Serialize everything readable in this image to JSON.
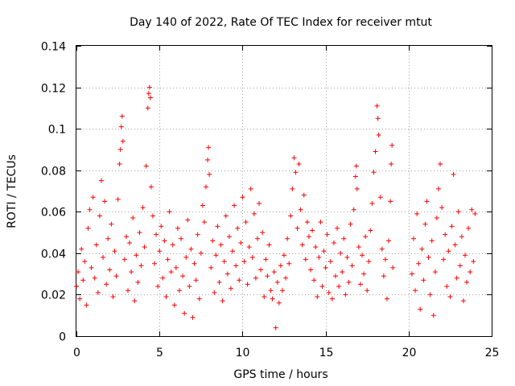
{
  "chart_data": {
    "type": "scatter",
    "title": "Day 140 of 2022, Rate Of TEC Index for receiver mtut",
    "xlabel": "GPS time / hours",
    "ylabel": "ROTI / TECUs",
    "xlim": [
      0,
      25
    ],
    "ylim": [
      0,
      0.14
    ],
    "xticks": [
      "0",
      "5",
      "10",
      "15",
      "20",
      "25"
    ],
    "yticks": [
      "0",
      "0.02",
      "0.04",
      "0.06",
      "0.08",
      "0.1",
      "0.12",
      "0.14"
    ],
    "grid": true,
    "marker": "+",
    "color": "#ff0000",
    "series": [
      {
        "name": "",
        "points": [
          [
            0.0,
            0.024
          ],
          [
            0.1,
            0.031
          ],
          [
            0.2,
            0.018
          ],
          [
            0.3,
            0.042
          ],
          [
            0.4,
            0.027
          ],
          [
            0.5,
            0.036
          ],
          [
            0.6,
            0.015
          ],
          [
            0.7,
            0.052
          ],
          [
            0.8,
            0.061
          ],
          [
            0.9,
            0.033
          ],
          [
            1.0,
            0.067
          ],
          [
            1.1,
            0.028
          ],
          [
            1.2,
            0.044
          ],
          [
            1.3,
            0.021
          ],
          [
            1.4,
            0.058
          ],
          [
            1.5,
            0.075
          ],
          [
            1.6,
            0.038
          ],
          [
            1.7,
            0.065
          ],
          [
            1.8,
            0.025
          ],
          [
            1.9,
            0.047
          ],
          [
            2.0,
            0.032
          ],
          [
            2.1,
            0.054
          ],
          [
            2.2,
            0.019
          ],
          [
            2.3,
            0.041
          ],
          [
            2.4,
            0.029
          ],
          [
            2.5,
            0.066
          ],
          [
            2.6,
            0.083
          ],
          [
            2.65,
            0.09
          ],
          [
            2.7,
            0.101
          ],
          [
            2.75,
            0.106
          ],
          [
            2.8,
            0.094
          ],
          [
            2.9,
            0.037
          ],
          [
            3.0,
            0.048
          ],
          [
            3.1,
            0.022
          ],
          [
            3.2,
            0.045
          ],
          [
            3.3,
            0.031
          ],
          [
            3.4,
            0.057
          ],
          [
            3.5,
            0.017
          ],
          [
            3.6,
            0.039
          ],
          [
            3.7,
            0.026
          ],
          [
            3.8,
            0.05
          ],
          [
            3.9,
            0.034
          ],
          [
            4.0,
            0.062
          ],
          [
            4.1,
            0.043
          ],
          [
            4.2,
            0.082
          ],
          [
            4.3,
            0.11
          ],
          [
            4.35,
            0.117
          ],
          [
            4.4,
            0.12
          ],
          [
            4.45,
            0.115
          ],
          [
            4.5,
            0.072
          ],
          [
            4.6,
            0.058
          ],
          [
            4.7,
            0.035
          ],
          [
            4.8,
            0.049
          ],
          [
            4.9,
            0.024
          ],
          [
            5.0,
            0.041
          ],
          [
            5.1,
            0.053
          ],
          [
            5.2,
            0.028
          ],
          [
            5.3,
            0.046
          ],
          [
            5.4,
            0.019
          ],
          [
            5.5,
            0.037
          ],
          [
            5.6,
            0.06
          ],
          [
            5.7,
            0.031
          ],
          [
            5.8,
            0.044
          ],
          [
            5.9,
            0.015
          ],
          [
            6.0,
            0.033
          ],
          [
            6.1,
            0.052
          ],
          [
            6.2,
            0.022
          ],
          [
            6.3,
            0.047
          ],
          [
            6.4,
            0.029
          ],
          [
            6.5,
            0.011
          ],
          [
            6.6,
            0.038
          ],
          [
            6.7,
            0.056
          ],
          [
            6.8,
            0.024
          ],
          [
            6.9,
            0.042
          ],
          [
            7.0,
            0.009
          ],
          [
            7.1,
            0.035
          ],
          [
            7.2,
            0.027
          ],
          [
            7.3,
            0.049
          ],
          [
            7.4,
            0.018
          ],
          [
            7.5,
            0.04
          ],
          [
            7.6,
            0.063
          ],
          [
            7.7,
            0.055
          ],
          [
            7.8,
            0.072
          ],
          [
            7.9,
            0.085
          ],
          [
            7.95,
            0.091
          ],
          [
            8.0,
            0.078
          ],
          [
            8.1,
            0.033
          ],
          [
            8.2,
            0.046
          ],
          [
            8.3,
            0.021
          ],
          [
            8.4,
            0.039
          ],
          [
            8.5,
            0.053
          ],
          [
            8.6,
            0.026
          ],
          [
            8.7,
            0.044
          ],
          [
            8.8,
            0.017
          ],
          [
            8.9,
            0.036
          ],
          [
            9.0,
            0.058
          ],
          [
            9.1,
            0.03
          ],
          [
            9.2,
            0.048
          ],
          [
            9.3,
            0.023
          ],
          [
            9.4,
            0.041
          ],
          [
            9.5,
            0.063
          ],
          [
            9.6,
            0.034
          ],
          [
            9.7,
            0.052
          ],
          [
            9.8,
            0.027
          ],
          [
            9.9,
            0.045
          ],
          [
            10.0,
            0.067
          ],
          [
            10.1,
            0.036
          ],
          [
            10.2,
            0.055
          ],
          [
            10.3,
            0.025
          ],
          [
            10.4,
            0.043
          ],
          [
            10.5,
            0.071
          ],
          [
            10.6,
            0.038
          ],
          [
            10.7,
            0.059
          ],
          [
            10.8,
            0.028
          ],
          [
            10.9,
            0.047
          ],
          [
            11.0,
            0.064
          ],
          [
            11.1,
            0.032
          ],
          [
            11.2,
            0.05
          ],
          [
            11.3,
            0.019
          ],
          [
            11.4,
            0.037
          ],
          [
            11.5,
            0.029
          ],
          [
            11.6,
            0.044
          ],
          [
            11.7,
            0.022
          ],
          [
            11.8,
            0.018
          ],
          [
            11.9,
            0.031
          ],
          [
            12.0,
            0.004
          ],
          [
            12.1,
            0.026
          ],
          [
            12.2,
            0.016
          ],
          [
            12.3,
            0.034
          ],
          [
            12.4,
            0.022
          ],
          [
            12.5,
            0.039
          ],
          [
            12.6,
            0.028
          ],
          [
            12.7,
            0.047
          ],
          [
            12.8,
            0.035
          ],
          [
            12.9,
            0.058
          ],
          [
            13.0,
            0.071
          ],
          [
            13.1,
            0.086
          ],
          [
            13.2,
            0.079
          ],
          [
            13.3,
            0.052
          ],
          [
            13.4,
            0.083
          ],
          [
            13.5,
            0.061
          ],
          [
            13.6,
            0.044
          ],
          [
            13.7,
            0.068
          ],
          [
            13.8,
            0.037
          ],
          [
            13.9,
            0.055
          ],
          [
            14.0,
            0.048
          ],
          [
            14.1,
            0.032
          ],
          [
            14.2,
            0.051
          ],
          [
            14.3,
            0.027
          ],
          [
            14.4,
            0.043
          ],
          [
            14.5,
            0.019
          ],
          [
            14.6,
            0.038
          ],
          [
            14.7,
            0.055
          ],
          [
            14.8,
            0.024
          ],
          [
            14.9,
            0.041
          ],
          [
            15.0,
            0.033
          ],
          [
            15.1,
            0.049
          ],
          [
            15.2,
            0.021
          ],
          [
            15.3,
            0.036
          ],
          [
            15.4,
            0.018
          ],
          [
            15.5,
            0.045
          ],
          [
            15.6,
            0.029
          ],
          [
            15.7,
            0.052
          ],
          [
            15.8,
            0.024
          ],
          [
            15.9,
            0.04
          ],
          [
            16.0,
            0.031
          ],
          [
            16.1,
            0.047
          ],
          [
            16.2,
            0.02
          ],
          [
            16.3,
            0.038
          ],
          [
            16.4,
            0.026
          ],
          [
            16.5,
            0.054
          ],
          [
            16.6,
            0.034
          ],
          [
            16.7,
            0.061
          ],
          [
            16.8,
            0.077
          ],
          [
            16.85,
            0.082
          ],
          [
            16.9,
            0.071
          ],
          [
            17.0,
            0.043
          ],
          [
            17.1,
            0.025
          ],
          [
            17.2,
            0.039
          ],
          [
            17.3,
            0.03
          ],
          [
            17.4,
            0.048
          ],
          [
            17.5,
            0.022
          ],
          [
            17.6,
            0.036
          ],
          [
            17.7,
            0.051
          ],
          [
            17.8,
            0.064
          ],
          [
            17.9,
            0.079
          ],
          [
            18.0,
            0.089
          ],
          [
            18.1,
            0.111
          ],
          [
            18.15,
            0.105
          ],
          [
            18.2,
            0.097
          ],
          [
            18.3,
            0.067
          ],
          [
            18.4,
            0.042
          ],
          [
            18.5,
            0.029
          ],
          [
            18.6,
            0.037
          ],
          [
            18.7,
            0.018
          ],
          [
            18.8,
            0.046
          ],
          [
            18.9,
            0.065
          ],
          [
            18.95,
            0.083
          ],
          [
            19.0,
            0.092
          ],
          [
            19.05,
            0.033
          ],
          [
            20.2,
            0.03
          ],
          [
            20.3,
            0.047
          ],
          [
            20.4,
            0.022
          ],
          [
            20.5,
            0.059
          ],
          [
            20.6,
            0.035
          ],
          [
            20.7,
            0.013
          ],
          [
            20.8,
            0.042
          ],
          [
            20.9,
            0.027
          ],
          [
            21.0,
            0.054
          ],
          [
            21.1,
            0.065
          ],
          [
            21.2,
            0.038
          ],
          [
            21.3,
            0.02
          ],
          [
            21.4,
            0.046
          ],
          [
            21.5,
            0.01
          ],
          [
            21.6,
            0.031
          ],
          [
            21.7,
            0.057
          ],
          [
            21.8,
            0.071
          ],
          [
            21.9,
            0.083
          ],
          [
            22.0,
            0.062
          ],
          [
            22.1,
            0.037
          ],
          [
            22.2,
            0.049
          ],
          [
            22.3,
            0.024
          ],
          [
            22.4,
            0.041
          ],
          [
            22.5,
            0.019
          ],
          [
            22.6,
            0.053
          ],
          [
            22.7,
            0.078
          ],
          [
            22.8,
            0.044
          ],
          [
            22.9,
            0.028
          ],
          [
            23.0,
            0.06
          ],
          [
            23.1,
            0.034
          ],
          [
            23.2,
            0.048
          ],
          [
            23.3,
            0.017
          ],
          [
            23.4,
            0.039
          ],
          [
            23.5,
            0.026
          ],
          [
            23.6,
            0.052
          ],
          [
            23.7,
            0.031
          ],
          [
            23.8,
            0.061
          ],
          [
            23.9,
            0.036
          ],
          [
            24.0,
            0.059
          ]
        ]
      }
    ]
  }
}
